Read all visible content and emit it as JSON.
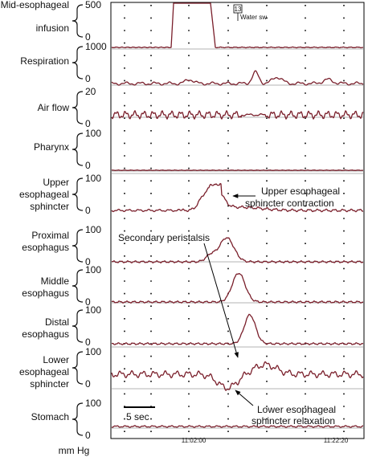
{
  "figure": {
    "colors": {
      "trace": "#7a1f2b",
      "baseline": "#9a9a9a",
      "frame": "#000000"
    },
    "channels": [
      {
        "id": "mid_esophageal_infusion",
        "label": [
          "Mid-esophageal",
          "infusion"
        ],
        "scale_top": "500",
        "scale_bottom": "0"
      },
      {
        "id": "respiration",
        "label": [
          "Respiration"
        ],
        "scale_top": "1000",
        "scale_bottom": "0"
      },
      {
        "id": "air_flow",
        "label": [
          "Air flow"
        ],
        "scale_top": "20",
        "scale_bottom": "0"
      },
      {
        "id": "pharynx",
        "label": [
          "Pharynx"
        ],
        "scale_top": "100",
        "scale_bottom": "0"
      },
      {
        "id": "upper_es",
        "label": [
          "Upper",
          "esophageal",
          "sphincter"
        ],
        "scale_top": "100",
        "scale_bottom": "0"
      },
      {
        "id": "proximal",
        "label": [
          "Proximal",
          "esophagus"
        ],
        "scale_top": "100",
        "scale_bottom": "0"
      },
      {
        "id": "middle",
        "label": [
          "Middle",
          "esophagus"
        ],
        "scale_top": "100",
        "scale_bottom": "0"
      },
      {
        "id": "distal",
        "label": [
          "Distal",
          "esophagus"
        ],
        "scale_top": "100",
        "scale_bottom": "0"
      },
      {
        "id": "lower_es",
        "label": [
          "Lower",
          "esophageal",
          "sphincter"
        ],
        "scale_top": "100",
        "scale_bottom": "0"
      },
      {
        "id": "stomach",
        "label": [
          "Stomach"
        ],
        "scale_top": "100",
        "scale_bottom": "0"
      }
    ],
    "time_ticks": [
      "11:02:00",
      "11:22:20"
    ],
    "unit": "mm Hg",
    "scale_bar_label": "5 sec",
    "event_marker": {
      "number": "13",
      "text": "Water sw"
    },
    "annotations": {
      "ues_contraction": [
        "Upper esophageal",
        "sphincter contraction"
      ],
      "secondary_peristalsis": "Secondary peristalsis",
      "les_relaxation": [
        "Lower esophageal",
        "sphincter relaxation"
      ]
    }
  }
}
